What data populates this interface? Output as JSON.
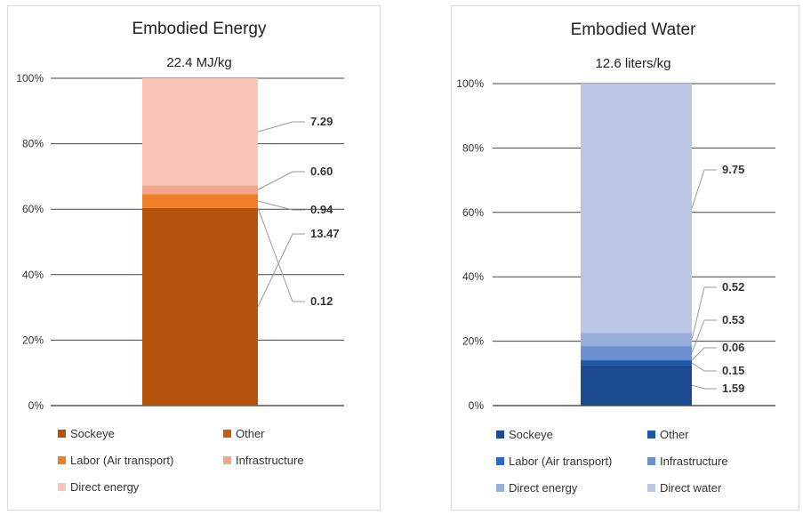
{
  "chart_data": [
    {
      "type": "bar",
      "stacked": true,
      "normalized_percent": true,
      "title": "Embodied Energy",
      "subtitle": "22.4 MJ/kg",
      "y_ticks": [
        "0%",
        "20%",
        "40%",
        "60%",
        "80%",
        "100%"
      ],
      "ylim": [
        0,
        100
      ],
      "grid": true,
      "legend_position": "bottom",
      "series": [
        {
          "name": "Sockeye",
          "value": 13.47,
          "label": "13.47",
          "color": "#b4530e"
        },
        {
          "name": "Other",
          "value": 0.0,
          "label": "",
          "color": "#c55f10"
        },
        {
          "name": "Labor (Air transport)",
          "value": 0.94,
          "label": "0.94",
          "color": "#f07e26"
        },
        {
          "name": "Infrastructure",
          "value": 0.6,
          "label": "0.60",
          "color": "#f4a58d"
        },
        {
          "name": "Direct energy",
          "value": 7.29,
          "label": "7.29",
          "color": "#fcc6b6"
        }
      ],
      "extra_labels": [
        {
          "label": "0.12"
        }
      ]
    },
    {
      "type": "bar",
      "stacked": true,
      "normalized_percent": true,
      "title": "Embodied Water",
      "subtitle": "12.6 liters/kg",
      "y_ticks": [
        "0%",
        "20%",
        "40%",
        "60%",
        "80%",
        "100%"
      ],
      "ylim": [
        0,
        100
      ],
      "grid": true,
      "legend_position": "bottom",
      "series": [
        {
          "name": "Sockeye",
          "value": 1.59,
          "label": "1.59",
          "color": "#1b4a8f"
        },
        {
          "name": "Other",
          "value": 0.15,
          "label": "0.15",
          "color": "#1f57a8"
        },
        {
          "name": "Labor (Air transport)",
          "value": 0.06,
          "label": "0.06",
          "color": "#2c6bc4"
        },
        {
          "name": "Infrastructure",
          "value": 0.53,
          "label": "0.53",
          "color": "#6e8fd0"
        },
        {
          "name": "Direct energy",
          "value": 0.52,
          "label": "0.52",
          "color": "#9aaedb"
        },
        {
          "name": "Direct water",
          "value": 9.75,
          "label": "9.75",
          "color": "#bcc7e3"
        }
      ]
    }
  ]
}
